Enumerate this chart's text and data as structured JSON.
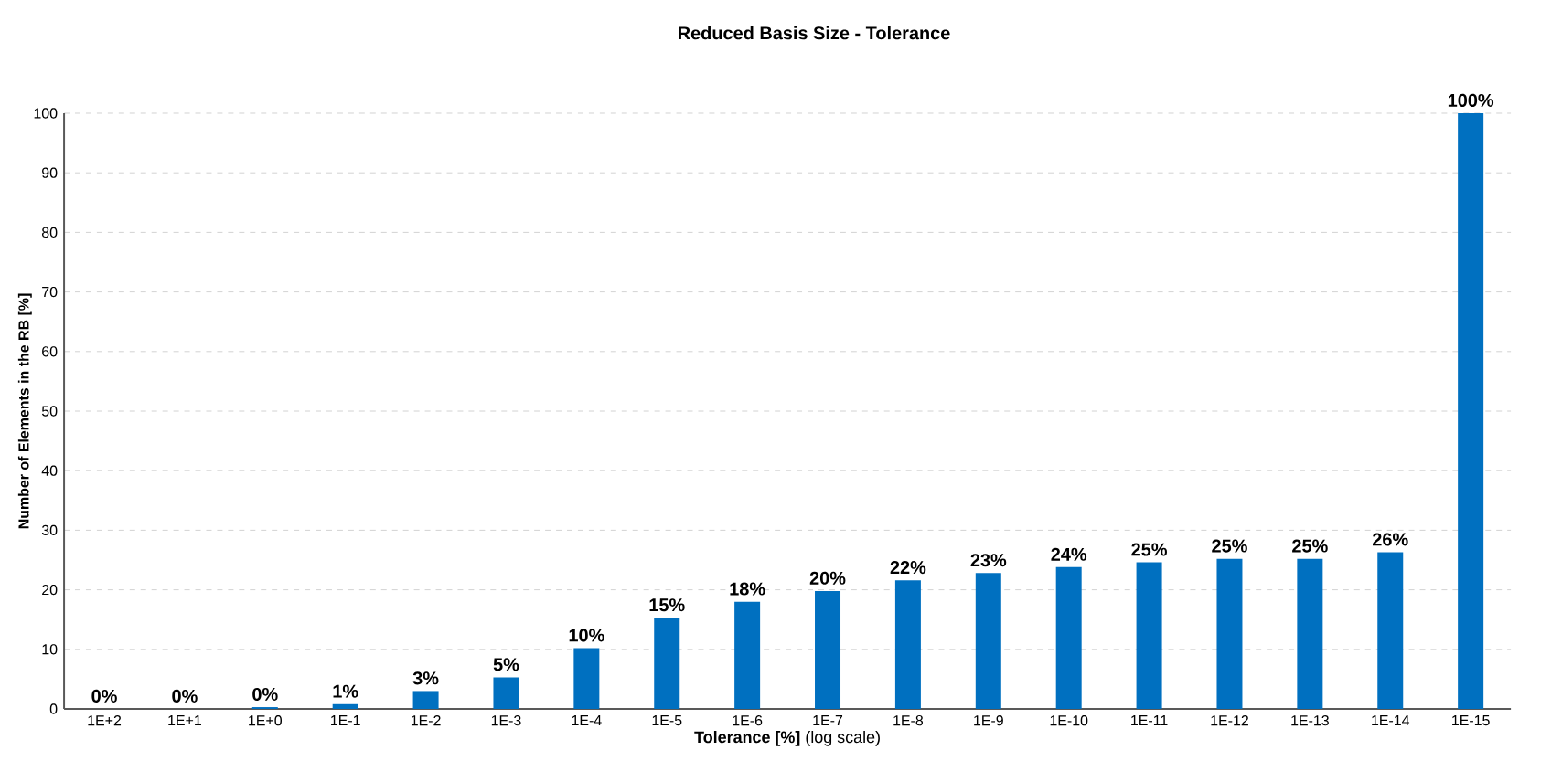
{
  "chart_data": {
    "type": "bar",
    "title": "Reduced Basis Size - Tolerance",
    "xlabel": "**Tolerance [%]** (log scale)",
    "ylabel": "Number of Elements in the RB [%]",
    "categories": [
      "1E+2",
      "1E+1",
      "1E+0",
      "1E-1",
      "1E-2",
      "1E-3",
      "1E-4",
      "1E-5",
      "1E-6",
      "1E-7",
      "1E-8",
      "1E-9",
      "1E-10",
      "1E-11",
      "1E-12",
      "1E-13",
      "1E-14",
      "1E-15"
    ],
    "values": [
      0,
      0,
      0.3,
      0.8,
      3,
      5.3,
      10.2,
      15.3,
      18,
      19.8,
      21.6,
      22.8,
      23.8,
      24.6,
      25.2,
      25.2,
      26.3,
      100
    ],
    "value_labels": [
      "0%",
      "0%",
      "0%",
      "1%",
      "3%",
      "5%",
      "10%",
      "15%",
      "18%",
      "20%",
      "22%",
      "23%",
      "24%",
      "25%",
      "25%",
      "25%",
      "26%",
      "100%"
    ],
    "color": "#0070c0",
    "ylim": [
      0,
      100
    ],
    "yticks": [
      0,
      10,
      20,
      30,
      40,
      50,
      60,
      70,
      80,
      90,
      100
    ],
    "grid": "y"
  }
}
